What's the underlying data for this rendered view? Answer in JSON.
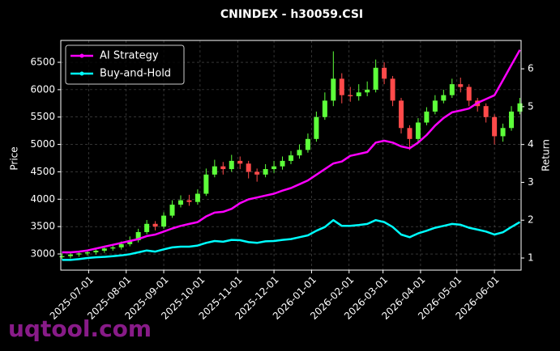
{
  "chart_data": {
    "type": "candlestick",
    "title": "CNINDEX - h30059.CSI",
    "ylabel": "Price",
    "y2label": "Return",
    "watermark": "uqtool.com",
    "x": [
      "2025-06-09",
      "2025-06-16",
      "2025-06-23",
      "2025-06-30",
      "2025-07-07",
      "2025-07-14",
      "2025-07-21",
      "2025-07-28",
      "2025-08-04",
      "2025-08-11",
      "2025-08-18",
      "2025-08-25",
      "2025-09-01",
      "2025-09-08",
      "2025-09-15",
      "2025-09-22",
      "2025-09-29",
      "2025-10-06",
      "2025-10-13",
      "2025-10-20",
      "2025-10-27",
      "2025-11-03",
      "2025-11-10",
      "2025-11-17",
      "2025-11-24",
      "2025-12-01",
      "2025-12-08",
      "2025-12-15",
      "2025-12-22",
      "2025-12-29",
      "2026-01-05",
      "2026-01-12",
      "2026-01-19",
      "2026-01-26",
      "2026-02-02",
      "2026-02-09",
      "2026-02-16",
      "2026-02-23",
      "2026-03-02",
      "2026-03-09",
      "2026-03-16",
      "2026-03-23",
      "2026-03-30",
      "2026-04-06",
      "2026-04-13",
      "2026-04-20",
      "2026-04-27",
      "2026-05-04",
      "2026-05-11",
      "2026-05-18",
      "2026-05-25",
      "2026-06-01",
      "2026-06-08",
      "2026-06-15",
      "2026-06-22"
    ],
    "open": [
      2940,
      2960,
      2990,
      3010,
      3030,
      3060,
      3100,
      3120,
      3180,
      3250,
      3400,
      3550,
      3500,
      3700,
      3900,
      3980,
      3950,
      4100,
      4450,
      4600,
      4550,
      4700,
      4650,
      4500,
      4450,
      4550,
      4600,
      4700,
      4800,
      4900,
      5100,
      5500,
      5800,
      6200,
      5900,
      5880,
      5950,
      6000,
      6400,
      6200,
      5800,
      5300,
      5100,
      5400,
      5600,
      5800,
      5900,
      6100,
      6050,
      5800,
      5700,
      5500,
      5150,
      5300,
      5600
    ],
    "high": [
      3010,
      3030,
      3060,
      3080,
      3110,
      3150,
      3180,
      3230,
      3320,
      3460,
      3620,
      3600,
      3760,
      3980,
      4070,
      4080,
      4180,
      4560,
      4720,
      4680,
      4810,
      4780,
      4700,
      4560,
      4640,
      4700,
      4780,
      4880,
      5000,
      5200,
      5600,
      5950,
      6700,
      6300,
      6050,
      6100,
      6150,
      6550,
      6500,
      6250,
      5850,
      5350,
      5480,
      5680,
      5900,
      6000,
      6200,
      6220,
      6100,
      5850,
      5750,
      5550,
      5380,
      5700,
      5850
    ],
    "low": [
      2900,
      2920,
      2950,
      2970,
      2990,
      3020,
      3060,
      3080,
      3140,
      3210,
      3360,
      3430,
      3460,
      3660,
      3850,
      3880,
      3900,
      4060,
      4400,
      4450,
      4500,
      4550,
      4380,
      4320,
      4400,
      4480,
      4540,
      4640,
      4740,
      4850,
      5050,
      5450,
      5700,
      5750,
      5780,
      5800,
      5880,
      5950,
      6100,
      5700,
      5200,
      4900,
      5050,
      5350,
      5550,
      5750,
      5850,
      5950,
      5700,
      5600,
      5400,
      5000,
      5050,
      5250,
      5550
    ],
    "close": [
      2960,
      2990,
      3010,
      3030,
      3060,
      3100,
      3120,
      3180,
      3250,
      3400,
      3550,
      3500,
      3700,
      3900,
      3980,
      3950,
      4100,
      4450,
      4600,
      4550,
      4700,
      4650,
      4500,
      4450,
      4550,
      4600,
      4700,
      4800,
      4900,
      5100,
      5500,
      5800,
      6200,
      5900,
      5880,
      5950,
      6000,
      6400,
      6200,
      5800,
      5300,
      5100,
      5400,
      5600,
      5800,
      5900,
      6100,
      6050,
      5800,
      5700,
      5500,
      5150,
      5300,
      5600,
      5750
    ],
    "up_color": "#5dff3a",
    "down_color": "#ff4a4a",
    "series": [
      {
        "name": "AI Strategy",
        "color": "#ff00ff",
        "axis": "y2",
        "values": [
          1.15,
          1.15,
          1.17,
          1.2,
          1.25,
          1.3,
          1.35,
          1.4,
          1.45,
          1.5,
          1.58,
          1.62,
          1.7,
          1.78,
          1.85,
          1.9,
          1.95,
          2.1,
          2.2,
          2.22,
          2.3,
          2.45,
          2.55,
          2.6,
          2.65,
          2.7,
          2.78,
          2.85,
          2.95,
          3.05,
          3.2,
          3.35,
          3.5,
          3.55,
          3.7,
          3.75,
          3.8,
          4.05,
          4.1,
          4.05,
          3.95,
          3.9,
          4.05,
          4.25,
          4.5,
          4.7,
          4.85,
          4.9,
          4.95,
          5.1,
          5.2,
          5.3,
          5.7,
          6.1,
          6.5
        ]
      },
      {
        "name": "Buy-and-Hold",
        "color": "#00ffff",
        "axis": "y2",
        "values": [
          0.95,
          0.95,
          0.97,
          1.0,
          1.02,
          1.03,
          1.05,
          1.07,
          1.1,
          1.15,
          1.2,
          1.17,
          1.23,
          1.28,
          1.3,
          1.3,
          1.33,
          1.4,
          1.45,
          1.43,
          1.48,
          1.47,
          1.42,
          1.4,
          1.44,
          1.45,
          1.48,
          1.5,
          1.55,
          1.6,
          1.72,
          1.82,
          2.0,
          1.85,
          1.85,
          1.87,
          1.9,
          2.0,
          1.95,
          1.82,
          1.62,
          1.55,
          1.65,
          1.72,
          1.8,
          1.85,
          1.9,
          1.88,
          1.8,
          1.75,
          1.7,
          1.62,
          1.68,
          1.82,
          1.95
        ]
      }
    ],
    "xlim": [
      "2025-06-08",
      "2026-06-23"
    ],
    "xticks": [
      "2025-07-01",
      "2025-08-01",
      "2025-09-01",
      "2025-10-01",
      "2025-11-01",
      "2025-12-01",
      "2026-01-01",
      "2026-02-01",
      "2026-03-01",
      "2026-04-01",
      "2026-05-01",
      "2026-06-01"
    ],
    "ylim": [
      2705,
      6899
    ],
    "yticks": [
      3000,
      3500,
      4000,
      4500,
      5000,
      5500,
      6000,
      6500
    ],
    "y2lim": [
      0.68,
      6.75
    ],
    "y2ticks": [
      1,
      2,
      3,
      4,
      5,
      6
    ],
    "grid": true,
    "legend": "upper left"
  }
}
